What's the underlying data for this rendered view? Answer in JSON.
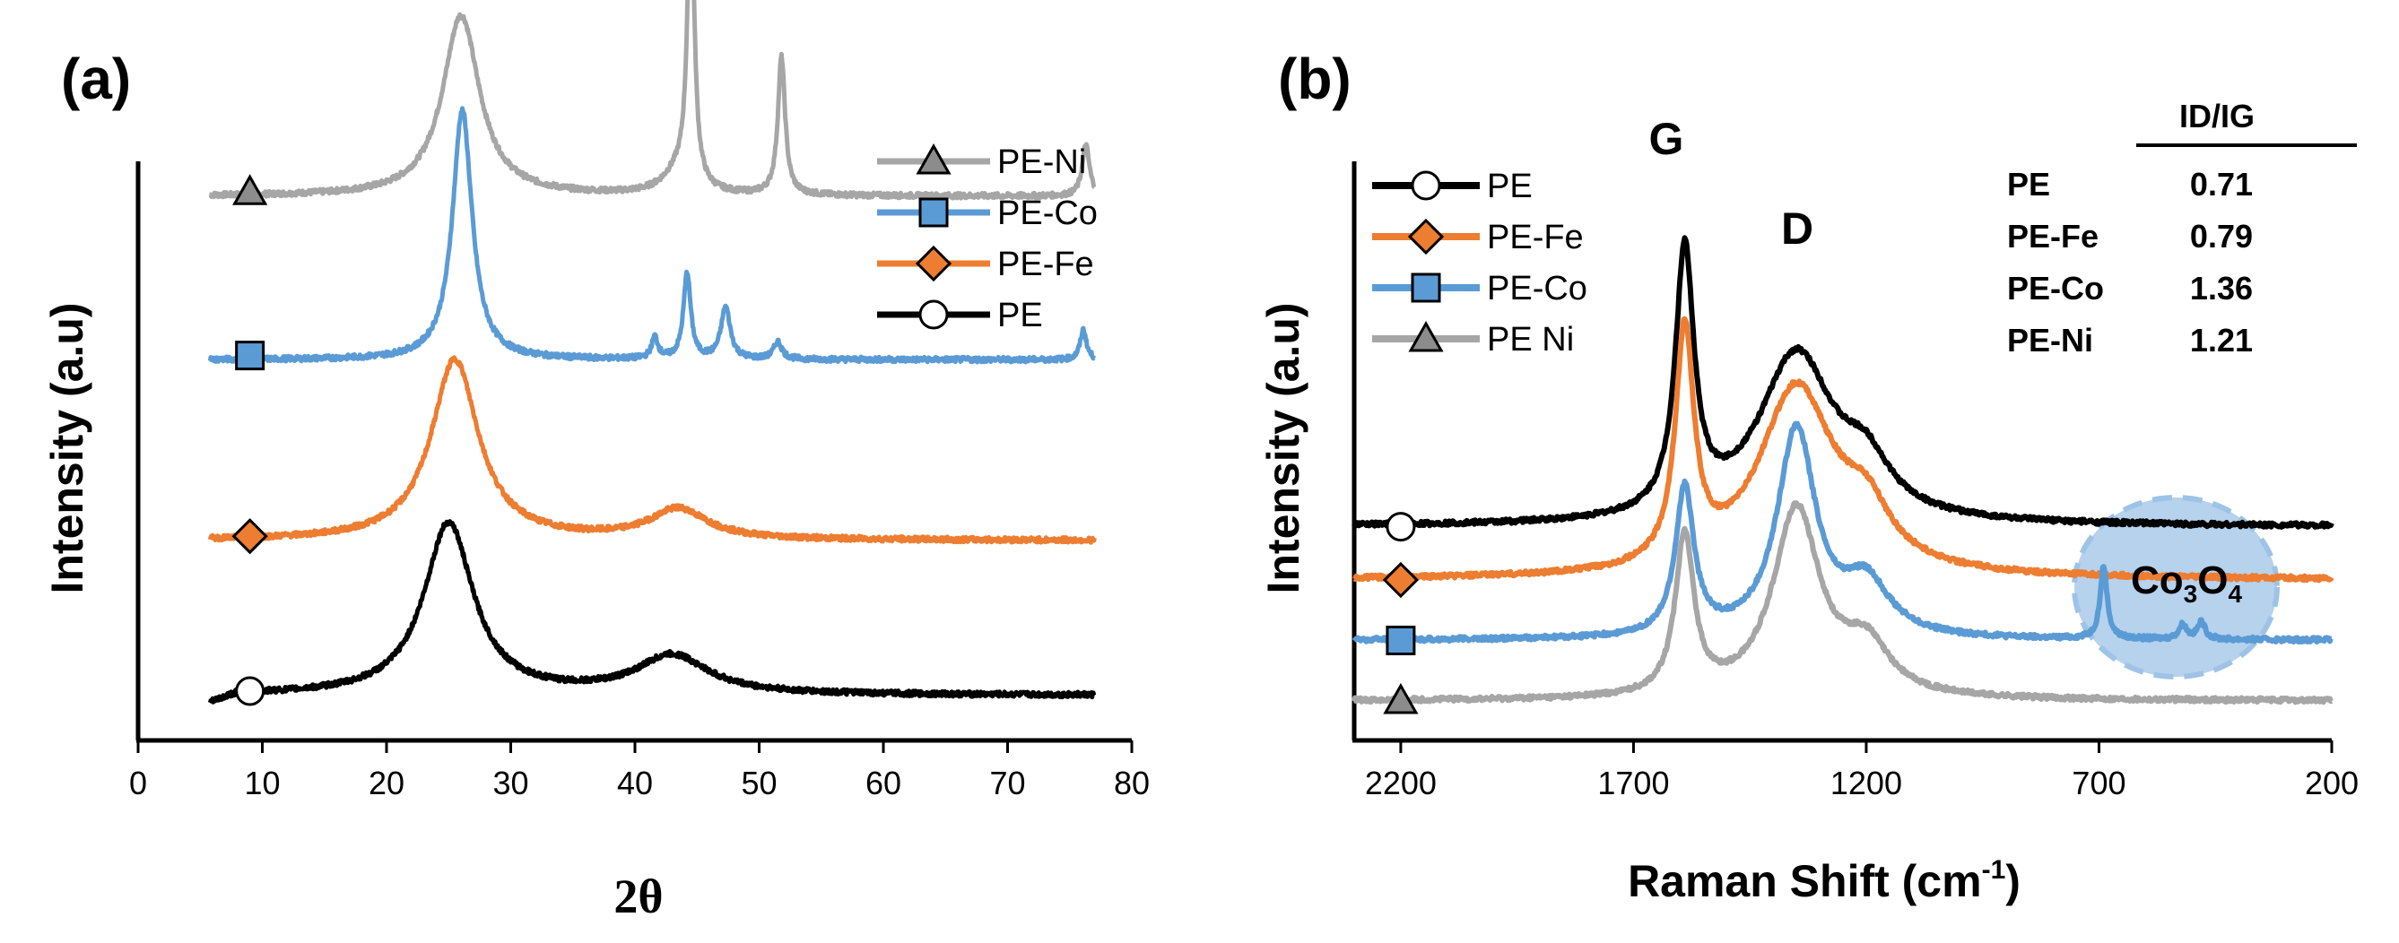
{
  "chart_data": [
    {
      "type": "line",
      "panel_label": "(a)",
      "xlabel": "2θ",
      "ylabel": "Intensity (a.u)",
      "xlim": [
        0,
        80
      ],
      "xticks": [
        "0",
        "10",
        "20",
        "30",
        "40",
        "50",
        "60",
        "70",
        "80"
      ],
      "legend_position": "top-right",
      "series": [
        {
          "name": "PE-Ni",
          "color": "#a6a6a6",
          "marker": "triangle",
          "marker_fill": "#8c8c8c",
          "baseline": 1.2,
          "marker_x": 9,
          "peaks": [
            {
              "x": 26,
              "h": 0.42,
              "w": 1.8
            },
            {
              "x": 43.5,
              "h": 0.05,
              "w": 1.5
            },
            {
              "x": 44.5,
              "h": 0.7,
              "w": 0.32
            },
            {
              "x": 51.8,
              "h": 0.32,
              "w": 0.35
            },
            {
              "x": 76.3,
              "h": 0.12,
              "w": 0.35
            }
          ],
          "label": "PE-Ni"
        },
        {
          "name": "PE-Co",
          "color": "#5b9bd5",
          "marker": "square",
          "marker_fill": "#5b9bd5",
          "baseline": 0.82,
          "marker_x": 9,
          "peaks": [
            {
              "x": 26.1,
              "h": 0.58,
              "w": 0.95
            },
            {
              "x": 41.6,
              "h": 0.05,
              "w": 0.3
            },
            {
              "x": 44.2,
              "h": 0.2,
              "w": 0.35
            },
            {
              "x": 47.3,
              "h": 0.12,
              "w": 0.45
            },
            {
              "x": 51.5,
              "h": 0.04,
              "w": 0.4
            },
            {
              "x": 76.1,
              "h": 0.07,
              "w": 0.3
            }
          ],
          "label": "PE-Co"
        },
        {
          "name": "PE-Fe",
          "color": "#ed7d31",
          "marker": "diamond",
          "marker_fill": "#ed7d31",
          "baseline": 0.4,
          "marker_x": 9,
          "peaks": [
            {
              "x": 25.5,
              "h": 0.42,
              "w": 2.3
            },
            {
              "x": 43.5,
              "h": 0.07,
              "w": 2.8
            }
          ],
          "label": "PE-Fe"
        },
        {
          "name": "PE",
          "color": "#000000",
          "marker": "circle",
          "marker_fill": "#ffffff",
          "baseline": 0.04,
          "marker_x": 9,
          "peaks": [
            {
              "x": 25,
              "h": 0.4,
              "w": 2.4
            },
            {
              "x": 43,
              "h": 0.09,
              "w": 3.5
            }
          ],
          "label": "PE"
        }
      ]
    },
    {
      "type": "line",
      "panel_label": "(b)",
      "xlabel_main": "Raman Shift (cm",
      "xlabel_sup": "-1",
      "xlabel_end": ")",
      "ylabel": "Intensity (a.u)",
      "xlim": [
        2300,
        200
      ],
      "xticks": [
        "2200",
        "1700",
        "1200",
        "700",
        "200"
      ],
      "legend_position": "top-left",
      "peak_labels": {
        "G": "G",
        "D": "D"
      },
      "series": [
        {
          "name": "PE",
          "color": "#000000",
          "marker": "circle",
          "marker_fill": "#ffffff",
          "baseline": 0.72,
          "marker_x": 2200,
          "G": 1.08,
          "D": 0.7,
          "D_w": 100,
          "label": "PE"
        },
        {
          "name": "PE-Fe",
          "color": "#ed7d31",
          "marker": "diamond",
          "marker_fill": "#ed7d31",
          "baseline": 0.5,
          "marker_x": 2200,
          "G": 0.96,
          "D": 0.78,
          "D_w": 100,
          "label": "PE-Fe"
        },
        {
          "name": "PE-Co",
          "color": "#5b9bd5",
          "marker": "square",
          "marker_fill": "#5b9bd5",
          "baseline": 0.25,
          "marker_x": 2200,
          "G": 0.61,
          "D": 0.86,
          "D_w": 50,
          "label": "PE-Co"
        },
        {
          "name": "PE Ni",
          "color": "#a6a6a6",
          "marker": "triangle",
          "marker_fill": "#8c8c8c",
          "baseline": 0.0,
          "marker_x": 2200,
          "G": 0.66,
          "D": 0.78,
          "D_w": 62,
          "label": "PE Ni"
        }
      ],
      "table": {
        "header": "ID/IG",
        "rows": [
          {
            "sample": "PE",
            "value": "0.71"
          },
          {
            "sample": "PE-Fe",
            "value": "0.79"
          },
          {
            "sample": "PE-Co",
            "value": "1.36"
          },
          {
            "sample": "PE-Ni",
            "value": "1.21"
          }
        ]
      },
      "inset": {
        "label_main": "Co",
        "label_sub1": "3",
        "label_mid": "O",
        "label_sub2": "4",
        "fill": "#9dc3e6"
      }
    }
  ]
}
